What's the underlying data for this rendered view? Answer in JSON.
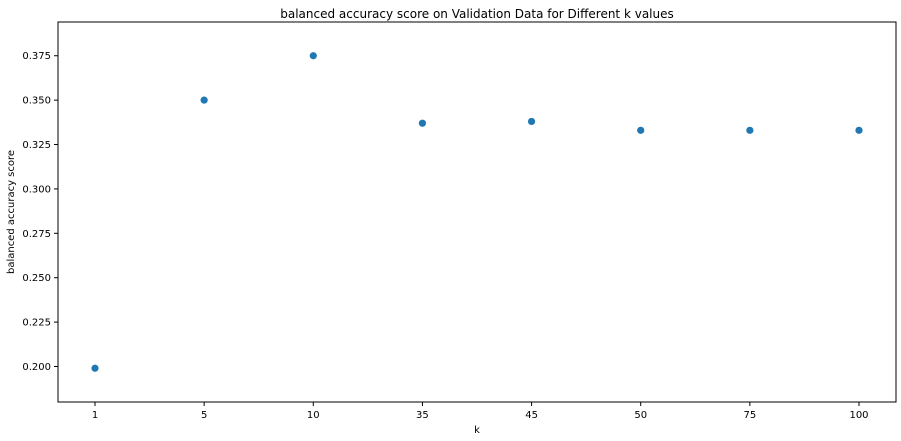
{
  "chart_data": {
    "type": "scatter",
    "title": "balanced accuracy score on Validation Data for Different k values",
    "xlabel": "k",
    "ylabel": "balanced accuracy score",
    "categories": [
      "1",
      "5",
      "10",
      "35",
      "45",
      "50",
      "75",
      "100"
    ],
    "series": [
      {
        "values": [
          0.199,
          0.35,
          0.375,
          0.337,
          0.338,
          0.333,
          0.333,
          0.333
        ]
      }
    ],
    "ylim": [
      0.18,
      0.394
    ],
    "yticks": [
      "0.200",
      "0.225",
      "0.250",
      "0.275",
      "0.300",
      "0.325",
      "0.350",
      "0.375"
    ],
    "grid": false,
    "color": "#1f77b4"
  }
}
